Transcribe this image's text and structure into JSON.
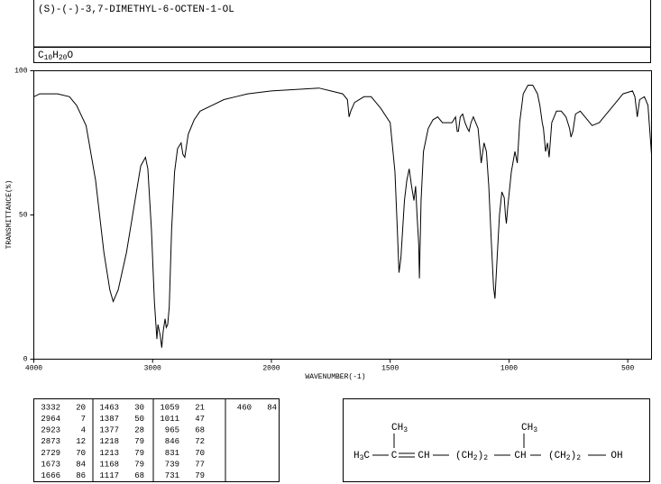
{
  "chart_data": {
    "type": "line",
    "title": "(S)-(-)-3,7-DIMETHYL-6-OCTEN-1-OL",
    "formula": "C10H20O",
    "xlabel": "WAVENUMBER(-1)",
    "ylabel": "TRANSMITTANCE(%)",
    "xlim": [
      4000,
      400
    ],
    "x_break": 2000,
    "xticks": [
      4000,
      3000,
      2000,
      1500,
      1000,
      500
    ],
    "ylim": [
      0,
      100
    ],
    "yticks": [
      0,
      50,
      100
    ],
    "x": [
      4000,
      3950,
      3800,
      3700,
      3640,
      3560,
      3480,
      3410,
      3360,
      3332,
      3290,
      3220,
      3160,
      3100,
      3060,
      3040,
      3010,
      2985,
      2964,
      2955,
      2945,
      2935,
      2923,
      2910,
      2895,
      2885,
      2873,
      2860,
      2840,
      2815,
      2790,
      2760,
      2745,
      2729,
      2700,
      2650,
      2600,
      2500,
      2400,
      2300,
      2200,
      2000,
      1800,
      1750,
      1700,
      1680,
      1673,
      1666,
      1650,
      1610,
      1580,
      1560,
      1540,
      1500,
      1480,
      1470,
      1463,
      1455,
      1440,
      1430,
      1420,
      1410,
      1400,
      1393,
      1387,
      1380,
      1377,
      1370,
      1360,
      1340,
      1320,
      1300,
      1280,
      1260,
      1240,
      1225,
      1218,
      1213,
      1205,
      1195,
      1185,
      1175,
      1168,
      1160,
      1150,
      1130,
      1117,
      1105,
      1095,
      1085,
      1075,
      1065,
      1059,
      1050,
      1040,
      1030,
      1020,
      1015,
      1011,
      1005,
      990,
      975,
      965,
      955,
      940,
      920,
      900,
      880,
      870,
      860,
      855,
      846,
      838,
      831,
      820,
      800,
      780,
      760,
      745,
      739,
      731,
      720,
      700,
      680,
      650,
      620,
      600,
      560,
      520,
      480,
      470,
      460,
      450,
      430,
      415,
      400
    ],
    "series": [
      {
        "color": "#000000",
        "values": [
          91,
          92,
          92,
          91,
          88,
          81,
          62,
          37,
          24,
          20,
          24,
          37,
          52,
          67,
          70,
          66,
          45,
          20,
          7,
          12,
          10,
          8,
          4,
          10,
          14,
          11,
          12,
          18,
          45,
          65,
          73,
          75,
          71,
          70,
          78,
          83,
          86,
          88,
          90,
          91,
          92,
          93,
          94,
          93,
          92,
          90,
          84,
          86,
          89,
          91,
          91,
          89,
          87,
          82,
          65,
          45,
          30,
          35,
          55,
          62,
          66,
          60,
          55,
          60,
          50,
          40,
          28,
          55,
          72,
          80,
          83,
          84,
          82,
          82,
          82,
          84,
          79,
          79,
          84,
          85,
          82,
          80,
          79,
          82,
          84,
          80,
          68,
          75,
          72,
          60,
          42,
          25,
          21,
          35,
          50,
          58,
          56,
          50,
          47,
          53,
          65,
          72,
          68,
          82,
          92,
          95,
          95,
          92,
          88,
          82,
          80,
          72,
          75,
          70,
          82,
          86,
          86,
          84,
          80,
          77,
          79,
          85,
          86,
          84,
          81,
          82,
          84,
          88,
          92,
          93,
          91,
          84,
          90,
          91,
          88,
          71
        ]
      }
    ],
    "peak_table": [
      [
        [
          3332,
          20
        ],
        [
          2964,
          7
        ],
        [
          2923,
          4
        ],
        [
          2873,
          12
        ],
        [
          2729,
          70
        ],
        [
          1673,
          84
        ],
        [
          1666,
          86
        ]
      ],
      [
        [
          1463,
          30
        ],
        [
          1387,
          50
        ],
        [
          1377,
          28
        ],
        [
          1218,
          79
        ],
        [
          1213,
          79
        ],
        [
          1168,
          79
        ],
        [
          1117,
          68
        ]
      ],
      [
        [
          1059,
          21
        ],
        [
          1011,
          47
        ],
        [
          965,
          68
        ],
        [
          846,
          72
        ],
        [
          831,
          70
        ],
        [
          739,
          77
        ],
        [
          731,
          79
        ]
      ],
      [
        [
          460,
          84
        ]
      ]
    ],
    "structure": {
      "chain": [
        "H3C",
        "C",
        "CH",
        "(CH2)2",
        "CH",
        "(CH2)2",
        "OH"
      ],
      "branches": [
        "CH3",
        "CH3"
      ]
    }
  }
}
